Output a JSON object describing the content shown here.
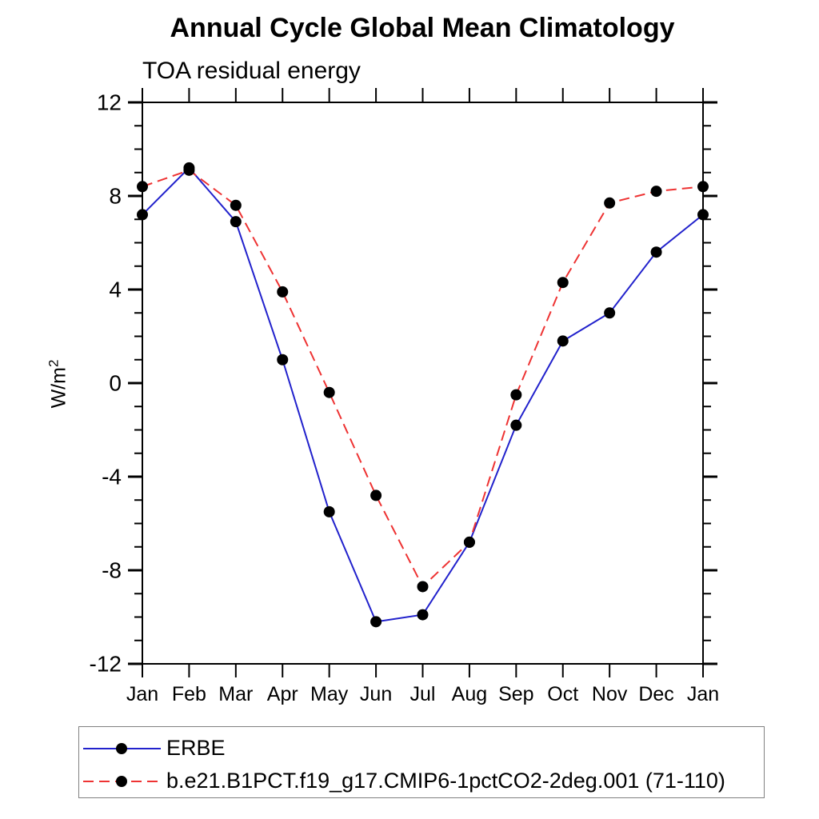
{
  "title": "Annual Cycle Global Mean Climatology",
  "subtitle": "TOA residual energy",
  "y_axis_unit": {
    "base": "W/m",
    "exponent": "2"
  },
  "chart_data": {
    "type": "line",
    "title": "Annual Cycle Global Mean Climatology",
    "subtitle": "TOA residual energy",
    "ylabel": "W/m^2",
    "xlabel": "",
    "ylim": [
      -12,
      12
    ],
    "y_major_ticks": [
      12,
      8,
      4,
      0,
      -4,
      -8,
      -12
    ],
    "y_minor_step": 1,
    "grid": false,
    "legend_position": "bottom-left boxed",
    "x_categories": [
      "Jan",
      "Feb",
      "Mar",
      "Apr",
      "May",
      "Jun",
      "Jul",
      "Aug",
      "Sep",
      "Oct",
      "Nov",
      "Dec",
      "Jan"
    ],
    "series": [
      {
        "name": "ERBE",
        "color": "#2222cc",
        "line_style": "solid",
        "marker": "filled-circle",
        "marker_color": "#000000",
        "values": [
          7.2,
          9.2,
          6.9,
          1.0,
          -5.5,
          -10.2,
          -9.9,
          -6.8,
          -1.8,
          1.8,
          3.0,
          5.6,
          7.2
        ]
      },
      {
        "name": "b.e21.B1PCT.f19_g17.CMIP6-1pctCO2-2deg.001 (71-110)",
        "color": "#ee3333",
        "line_style": "dashed",
        "marker": "filled-circle",
        "marker_color": "#000000",
        "values": [
          8.4,
          9.1,
          7.6,
          3.9,
          -0.4,
          -4.8,
          -8.7,
          -6.8,
          -0.5,
          4.3,
          7.7,
          8.2,
          8.4
        ]
      }
    ]
  }
}
